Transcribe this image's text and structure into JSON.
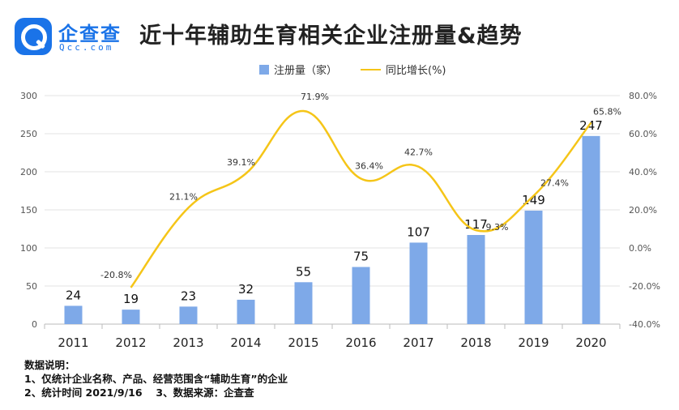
{
  "logo": {
    "name": "企查查",
    "sub": "Qcc.com"
  },
  "title": "近十年辅助生育相关企业注册量&趋势",
  "colors": {
    "bar": "#7ea9e8",
    "line": "#f5c518",
    "grid": "#e3e3e3",
    "axis_text": "#555555"
  },
  "chart_data": {
    "type": "bar+line",
    "categories": [
      "2011",
      "2012",
      "2013",
      "2014",
      "2015",
      "2016",
      "2017",
      "2018",
      "2019",
      "2020"
    ],
    "series": [
      {
        "name": "注册量（家）",
        "type": "bar",
        "axis": "left",
        "values": [
          24,
          19,
          23,
          32,
          55,
          75,
          107,
          117,
          149,
          247
        ],
        "labels": [
          "24",
          "19",
          "23",
          "32",
          "55",
          "75",
          "107",
          "117",
          "149",
          "247"
        ]
      },
      {
        "name": "同比增长(%)",
        "type": "line",
        "axis": "right",
        "values": [
          null,
          -20.8,
          21.1,
          39.1,
          71.9,
          36.4,
          42.7,
          9.3,
          27.4,
          65.8
        ],
        "labels": [
          "",
          "-20.8%",
          "21.1%",
          "39.1%",
          "71.9%",
          "36.4%",
          "42.7%",
          "9.3%",
          "27.4%",
          "65.8%"
        ]
      }
    ],
    "y_left": {
      "min": 0,
      "max": 300,
      "ticks": [
        "0",
        "50",
        "100",
        "150",
        "200",
        "250",
        "300"
      ]
    },
    "y_right": {
      "min": -40,
      "max": 80,
      "ticks": [
        "-40.0%",
        "-20.0%",
        "0.0%",
        "20.0%",
        "40.0%",
        "60.0%",
        "80.0%"
      ]
    },
    "grid": true,
    "legend_position": "top"
  },
  "notes": [
    "数据说明：",
    "1、仅统计企业名称、产品、经营范围含“辅助生育”的企业",
    "2、统计时间 2021/9/16　 3、数据来源：企查查"
  ]
}
